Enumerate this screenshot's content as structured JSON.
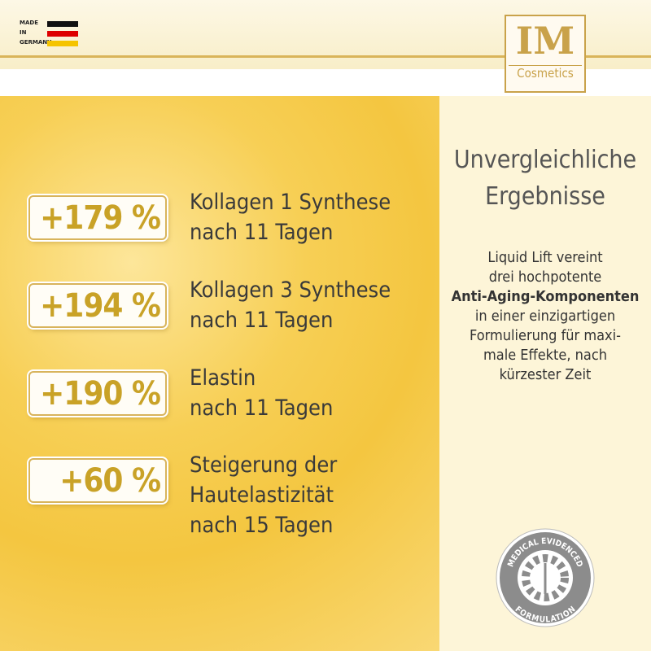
{
  "header": {
    "made_in": [
      "MADE",
      "IN",
      "GERMANY"
    ],
    "logo": {
      "mark": "IM",
      "brand": "Cosmetics"
    }
  },
  "results": [
    {
      "value": "+179 %",
      "lines": [
        "Kollagen 1 Synthese",
        "nach 11 Tagen"
      ]
    },
    {
      "value": "+194 %",
      "lines": [
        "Kollagen 3 Synthese",
        "nach 11 Tagen"
      ]
    },
    {
      "value": "+190 %",
      "lines": [
        "Elastin",
        "nach 11 Tagen"
      ]
    },
    {
      "value": "+60 %",
      "lines": [
        "Steigerung der",
        "Hautelastizität",
        "nach 15 Tagen"
      ]
    }
  ],
  "side": {
    "heading": [
      "Unvergleichliche",
      "Ergebnisse"
    ],
    "text": [
      "Liquid Lift vereint",
      "drei hochpotente",
      "Anti-Aging-Komponenten",
      "in einer einzigartigen",
      "Formulierung für maxi-",
      "male Effekte, nach",
      "kürzester Zeit"
    ],
    "badge": {
      "top": "MEDICAL EVIDENCED",
      "bottom": "FORMULATION"
    }
  }
}
